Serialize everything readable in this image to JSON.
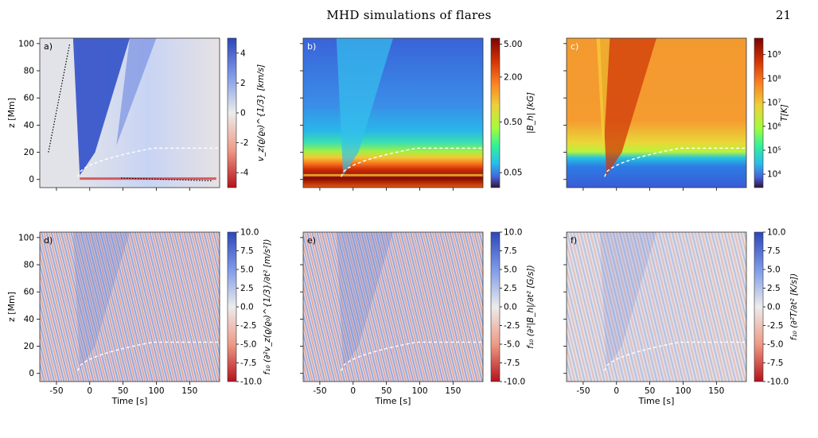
{
  "header": {
    "title": "MHD simulations of flares",
    "page_number": "21"
  },
  "figure": {
    "x_axis_label": "Time [s]",
    "z_axis_label": "z [Mm]",
    "x_ticks": [
      "-50",
      "0",
      "50",
      "100",
      "150"
    ],
    "z_ticks": [
      "0",
      "20",
      "40",
      "60",
      "80",
      "100"
    ],
    "panels": [
      {
        "letter": "a)",
        "colorbar_label": "v_z(ϱ/ϱ₀)^{1/3} [km/s]",
        "colorbar_ticks": [
          "4",
          "2",
          "0",
          "-2",
          "-4"
        ],
        "cmap": "diverging"
      },
      {
        "letter": "b)",
        "colorbar_label": "|B_h| [kG]",
        "colorbar_ticks": [
          "5.00",
          "2.00",
          "0.50",
          "0.05"
        ],
        "cmap": "jet"
      },
      {
        "letter": "c)",
        "colorbar_label": "T[K]",
        "colorbar_ticks": [
          "10⁹",
          "10⁸",
          "10⁷",
          "10⁶",
          "10⁵",
          "10⁴"
        ],
        "cmap": "jet"
      },
      {
        "letter": "d)",
        "colorbar_label": "f₁₀ (∂²v_z(ϱ/ϱ₀)^{1/3}/∂t² [m/s²])",
        "colorbar_ticks": [
          "10.0",
          "7.5",
          "5.0",
          "2.5",
          "0.0",
          "-2.5",
          "-5.0",
          "-7.5",
          "-10.0"
        ],
        "cmap": "diverging"
      },
      {
        "letter": "e)",
        "colorbar_label": "f₁₀ (∂²|B_h|/∂t² [G/s])",
        "colorbar_ticks": [
          "10.0",
          "7.5",
          "5.0",
          "2.5",
          "0.0",
          "-2.5",
          "-5.0",
          "-7.5",
          "-10.0"
        ],
        "cmap": "diverging"
      },
      {
        "letter": "f)",
        "colorbar_label": "f₁₀ (∂²T/∂t² [K/s])",
        "colorbar_ticks": [
          "10.0",
          "7.5",
          "5.0",
          "2.5",
          "0.0",
          "-2.5",
          "-5.0",
          "-7.5",
          "-10.0"
        ],
        "cmap": "diverging"
      }
    ],
    "colors": {
      "blue": "#2c4fc4",
      "red": "#c81f1f",
      "neutral": "#dcdcdc",
      "dashed_line": "#ffffff"
    }
  }
}
